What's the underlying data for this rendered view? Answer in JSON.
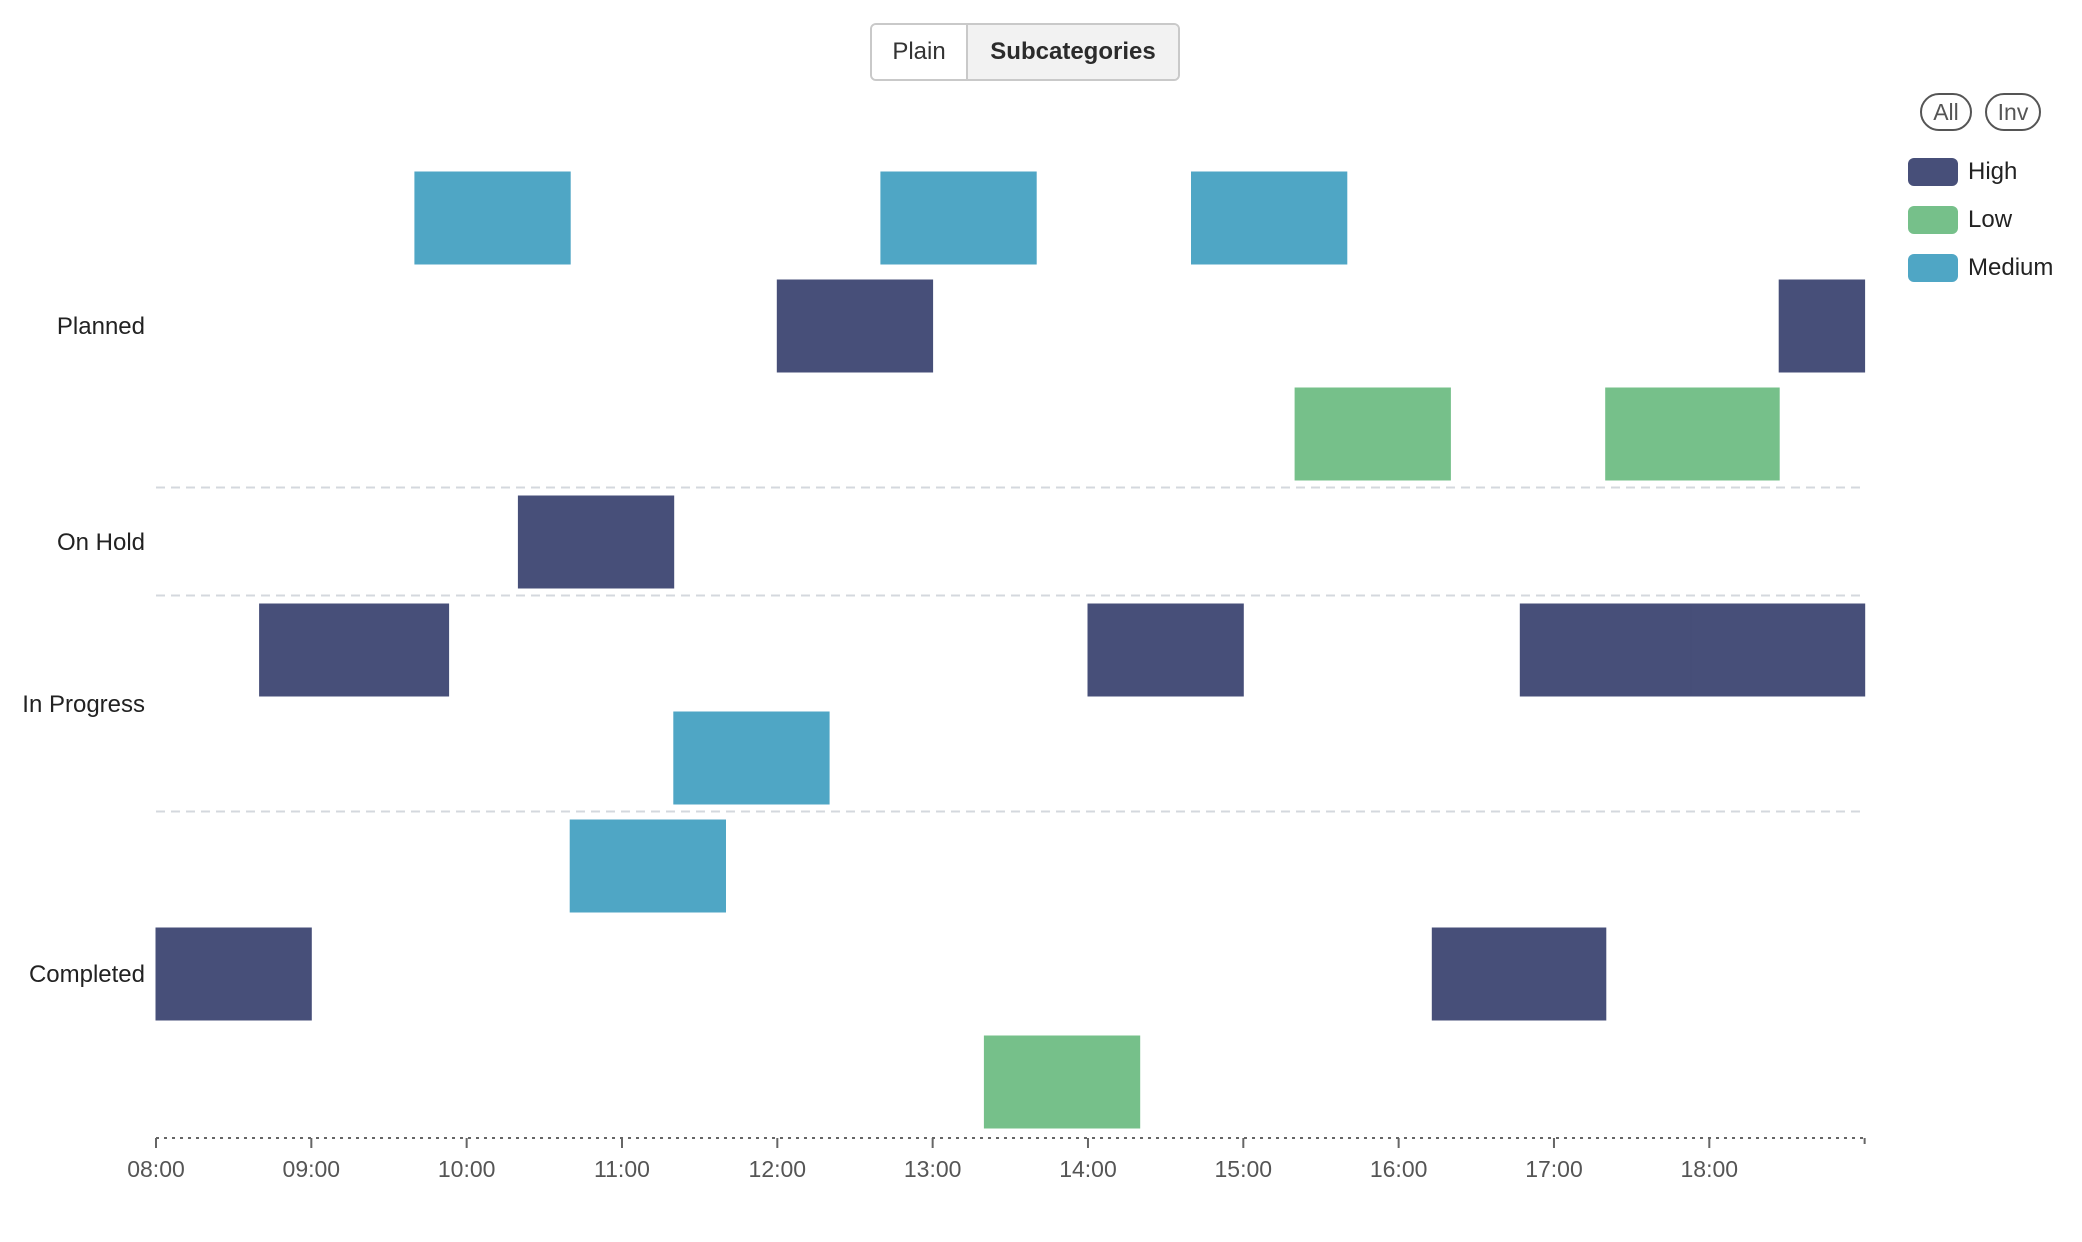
{
  "toggle": {
    "plain_label": "Plain",
    "subcategories_label": "Subcategories",
    "selected": "Subcategories"
  },
  "legend_controls": {
    "all_label": "All",
    "inv_label": "Inv"
  },
  "legend": [
    {
      "name": "High",
      "color": "#474f79"
    },
    {
      "name": "Low",
      "color": "#76c08a"
    },
    {
      "name": "Medium",
      "color": "#4fa6c5"
    }
  ],
  "chart_data": {
    "type": "timeline",
    "x_ticks": [
      "08:00",
      "09:00",
      "10:00",
      "11:00",
      "12:00",
      "13:00",
      "14:00",
      "15:00",
      "16:00",
      "17:00",
      "18:00"
    ],
    "x_range": [
      "08:00",
      "19:00"
    ],
    "rows": [
      {
        "category": "Planned",
        "subrows": 3
      },
      {
        "category": "On Hold",
        "subrows": 1
      },
      {
        "category": "In Progress",
        "subrows": 2
      },
      {
        "category": "Completed",
        "subrows": 3
      }
    ],
    "grid": "dashed separators between categories",
    "legend_position": "top-right",
    "tasks": [
      {
        "category": "Planned",
        "lane": 0,
        "priority": "Medium",
        "start": "09:40",
        "end": "10:40"
      },
      {
        "category": "Planned",
        "lane": 0,
        "priority": "Medium",
        "start": "12:40",
        "end": "13:40"
      },
      {
        "category": "Planned",
        "lane": 0,
        "priority": "Medium",
        "start": "14:40",
        "end": "15:40"
      },
      {
        "category": "Planned",
        "lane": 1,
        "priority": "High",
        "start": "12:00",
        "end": "13:00"
      },
      {
        "category": "Planned",
        "lane": 1,
        "priority": "High",
        "start": "18:27",
        "end": "19:00"
      },
      {
        "category": "Planned",
        "lane": 2,
        "priority": "Low",
        "start": "15:20",
        "end": "16:20"
      },
      {
        "category": "Planned",
        "lane": 2,
        "priority": "Low",
        "start": "17:20",
        "end": "18:27"
      },
      {
        "category": "On Hold",
        "lane": 0,
        "priority": "High",
        "start": "10:20",
        "end": "11:20"
      },
      {
        "category": "In Progress",
        "lane": 0,
        "priority": "High",
        "start": "08:40",
        "end": "09:53"
      },
      {
        "category": "In Progress",
        "lane": 0,
        "priority": "High",
        "start": "14:00",
        "end": "15:00"
      },
      {
        "category": "In Progress",
        "lane": 0,
        "priority": "High",
        "start": "16:47",
        "end": "17:53"
      },
      {
        "category": "In Progress",
        "lane": 0,
        "priority": "High",
        "start": "17:53",
        "end": "19:00"
      },
      {
        "category": "In Progress",
        "lane": 1,
        "priority": "Medium",
        "start": "11:20",
        "end": "12:20"
      },
      {
        "category": "Completed",
        "lane": 0,
        "priority": "Medium",
        "start": "10:40",
        "end": "11:40"
      },
      {
        "category": "Completed",
        "lane": 1,
        "priority": "High",
        "start": "08:00",
        "end": "09:00"
      },
      {
        "category": "Completed",
        "lane": 1,
        "priority": "High",
        "start": "16:13",
        "end": "17:20"
      },
      {
        "category": "Completed",
        "lane": 2,
        "priority": "Low",
        "start": "13:20",
        "end": "14:20"
      }
    ]
  }
}
